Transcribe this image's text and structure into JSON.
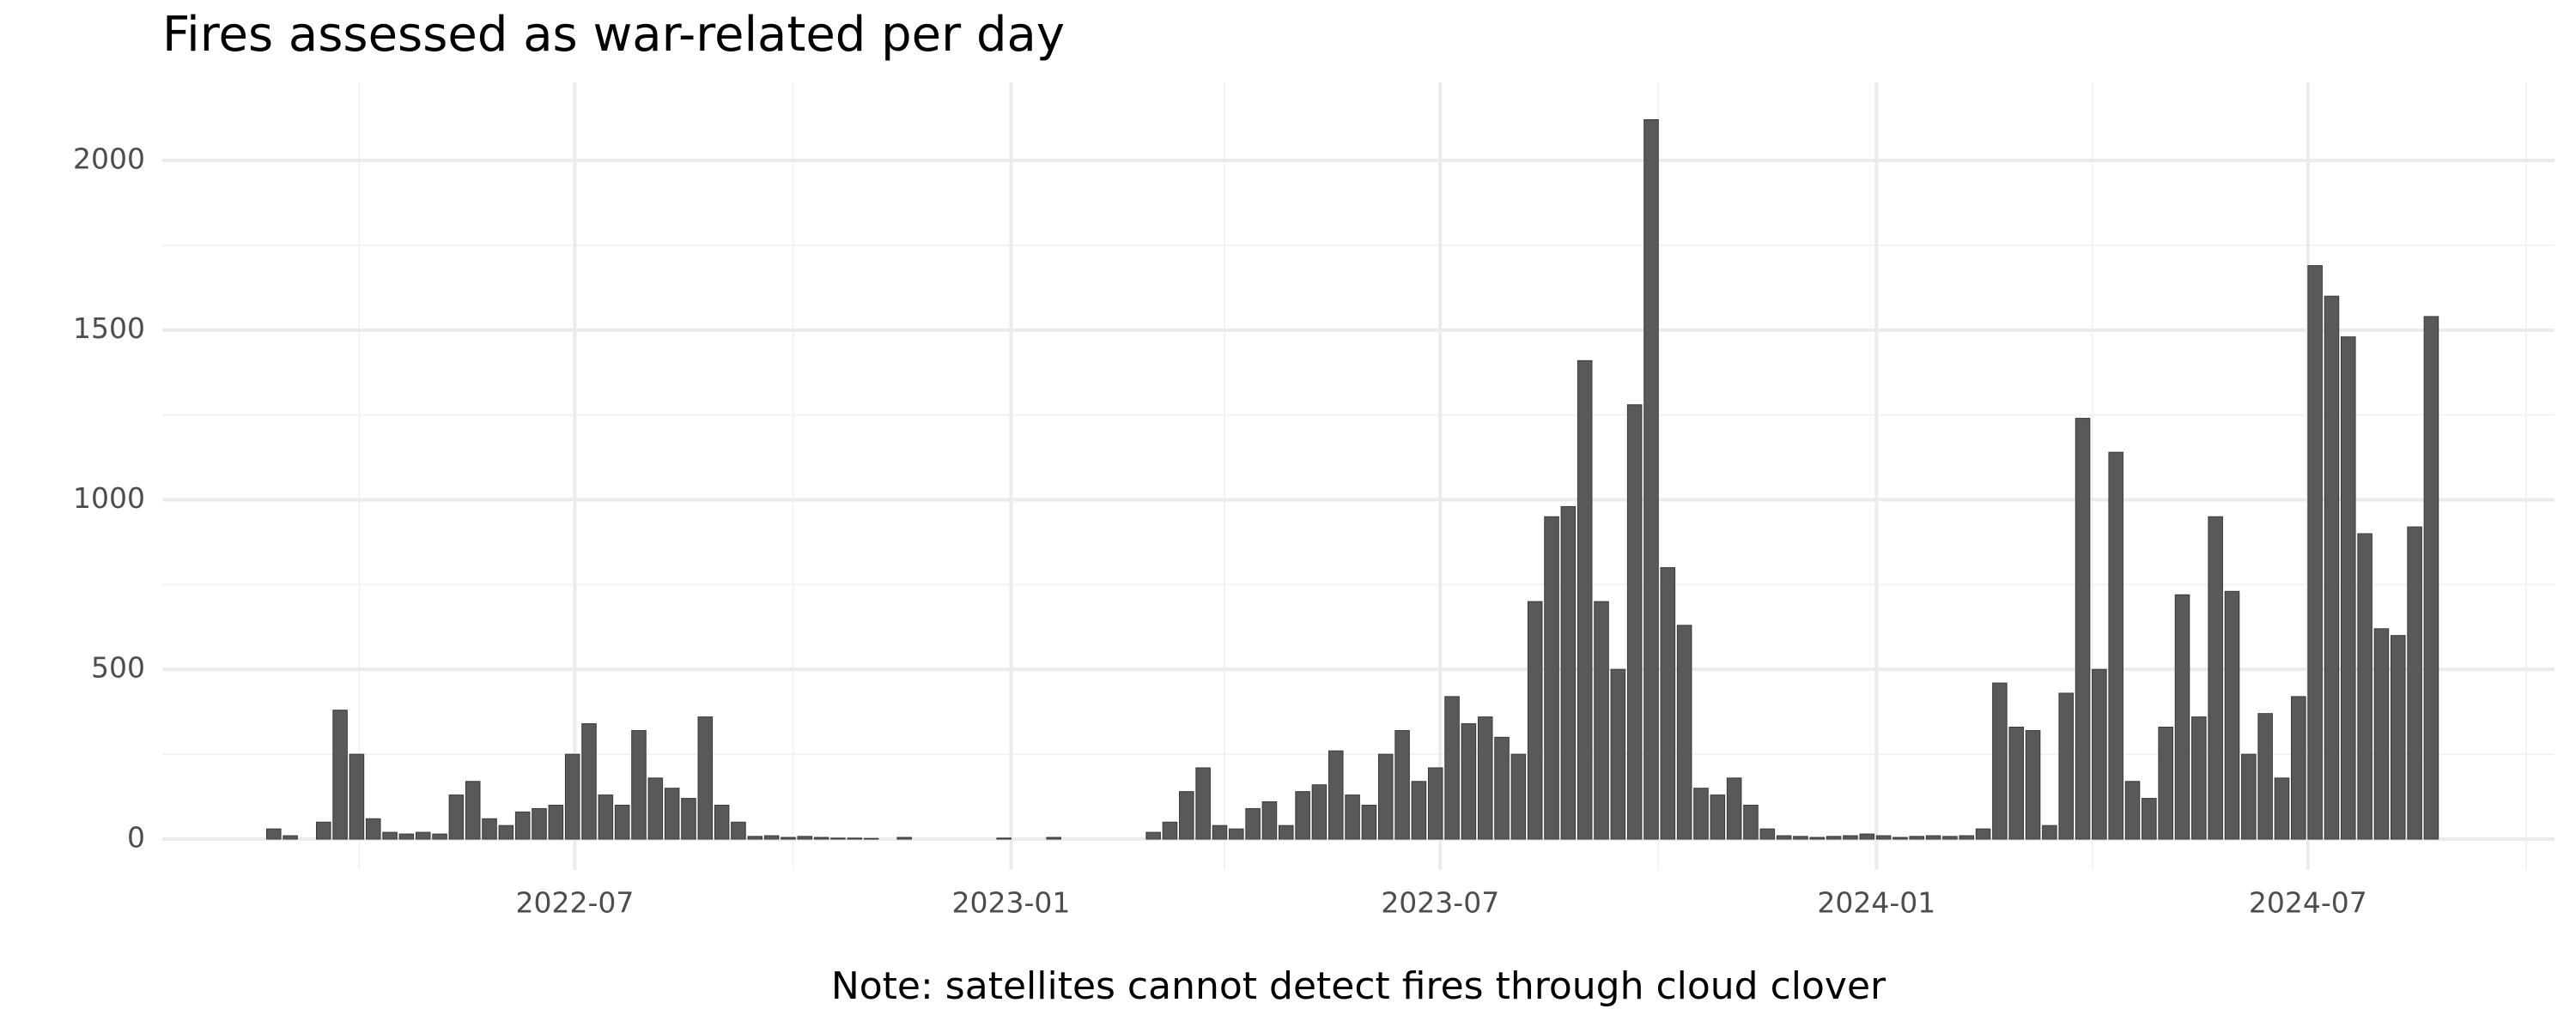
{
  "chart_data": {
    "type": "bar",
    "title": "Fires assessed as war-related per day",
    "caption": "Note: satellites cannot detect fires through cloud clover",
    "color": "#595959",
    "grid": true,
    "xlim": [
      "2022-01-08",
      "2024-10-13"
    ],
    "xticks": [
      {
        "value": "2022-07-01",
        "label": "2022-07"
      },
      {
        "value": "2023-01-01",
        "label": "2023-01"
      },
      {
        "value": "2023-07-01",
        "label": "2023-07"
      },
      {
        "value": "2024-01-01",
        "label": "2024-01"
      },
      {
        "value": "2024-07-01",
        "label": "2024-07"
      }
    ],
    "x_minor_gridlines": [
      "2022-04-01",
      "2022-10-01",
      "2023-04-01",
      "2023-10-01",
      "2024-04-01",
      "2024-10-01"
    ],
    "ylim": [
      -91,
      2230
    ],
    "yticks": [
      0,
      500,
      1000,
      1500,
      2000
    ],
    "y_minor_gridlines": [
      250,
      750,
      1250,
      1750
    ],
    "x": [
      "2022-02-24",
      "2022-03-03",
      "2022-03-10",
      "2022-03-17",
      "2022-03-24",
      "2022-03-31",
      "2022-04-07",
      "2022-04-14",
      "2022-04-21",
      "2022-04-28",
      "2022-05-05",
      "2022-05-12",
      "2022-05-19",
      "2022-05-26",
      "2022-06-02",
      "2022-06-09",
      "2022-06-16",
      "2022-06-23",
      "2022-06-30",
      "2022-07-07",
      "2022-07-14",
      "2022-07-21",
      "2022-07-28",
      "2022-08-04",
      "2022-08-11",
      "2022-08-18",
      "2022-08-25",
      "2022-09-01",
      "2022-09-08",
      "2022-09-15",
      "2022-09-22",
      "2022-09-29",
      "2022-10-06",
      "2022-10-13",
      "2022-10-20",
      "2022-10-27",
      "2022-11-03",
      "2022-11-10",
      "2022-11-17",
      "2022-11-24",
      "2022-12-01",
      "2022-12-08",
      "2022-12-15",
      "2022-12-22",
      "2022-12-29",
      "2023-01-05",
      "2023-01-12",
      "2023-01-19",
      "2023-01-26",
      "2023-02-02",
      "2023-02-09",
      "2023-02-16",
      "2023-02-23",
      "2023-03-02",
      "2023-03-09",
      "2023-03-16",
      "2023-03-23",
      "2023-03-30",
      "2023-04-06",
      "2023-04-13",
      "2023-04-20",
      "2023-04-27",
      "2023-05-04",
      "2023-05-11",
      "2023-05-18",
      "2023-05-25",
      "2023-06-01",
      "2023-06-08",
      "2023-06-15",
      "2023-06-22",
      "2023-06-29",
      "2023-07-06",
      "2023-07-13",
      "2023-07-20",
      "2023-07-27",
      "2023-08-03",
      "2023-08-10",
      "2023-08-17",
      "2023-08-24",
      "2023-08-31",
      "2023-09-07",
      "2023-09-14",
      "2023-09-21",
      "2023-09-28",
      "2023-10-05",
      "2023-10-12",
      "2023-10-19",
      "2023-10-26",
      "2023-11-02",
      "2023-11-09",
      "2023-11-16",
      "2023-11-23",
      "2023-11-30",
      "2023-12-07",
      "2023-12-14",
      "2023-12-21",
      "2023-12-28",
      "2024-01-04",
      "2024-01-11",
      "2024-01-18",
      "2024-01-25",
      "2024-02-01",
      "2024-02-08",
      "2024-02-15",
      "2024-02-22",
      "2024-02-29",
      "2024-03-07",
      "2024-03-14",
      "2024-03-21",
      "2024-03-28",
      "2024-04-04",
      "2024-04-11",
      "2024-04-18",
      "2024-04-25",
      "2024-05-02",
      "2024-05-09",
      "2024-05-16",
      "2024-05-23",
      "2024-05-30",
      "2024-06-06",
      "2024-06-13",
      "2024-06-20",
      "2024-06-27",
      "2024-07-04",
      "2024-07-11",
      "2024-07-18",
      "2024-07-25",
      "2024-08-01",
      "2024-08-08",
      "2024-08-15",
      "2024-08-22"
    ],
    "values": [
      30,
      10,
      0,
      50,
      380,
      250,
      60,
      20,
      15,
      20,
      15,
      130,
      170,
      60,
      40,
      80,
      90,
      100,
      250,
      340,
      130,
      100,
      320,
      180,
      150,
      120,
      360,
      100,
      50,
      8,
      10,
      5,
      8,
      5,
      3,
      3,
      2,
      0,
      5,
      0,
      0,
      0,
      0,
      0,
      3,
      0,
      0,
      5,
      0,
      0,
      0,
      0,
      0,
      20,
      50,
      140,
      210,
      40,
      30,
      90,
      110,
      40,
      140,
      160,
      260,
      130,
      100,
      250,
      320,
      170,
      210,
      420,
      340,
      360,
      300,
      250,
      700,
      950,
      980,
      1410,
      700,
      500,
      1280,
      2120,
      800,
      630,
      150,
      130,
      180,
      100,
      30,
      10,
      8,
      5,
      8,
      10,
      15,
      10,
      5,
      8,
      10,
      8,
      10,
      30,
      460,
      330,
      320,
      40,
      430,
      1240,
      500,
      1140,
      170,
      120,
      330,
      720,
      360,
      950,
      730,
      250,
      370,
      180,
      420,
      1690,
      1600,
      1480,
      900,
      620,
      600,
      920,
      1540
    ]
  }
}
